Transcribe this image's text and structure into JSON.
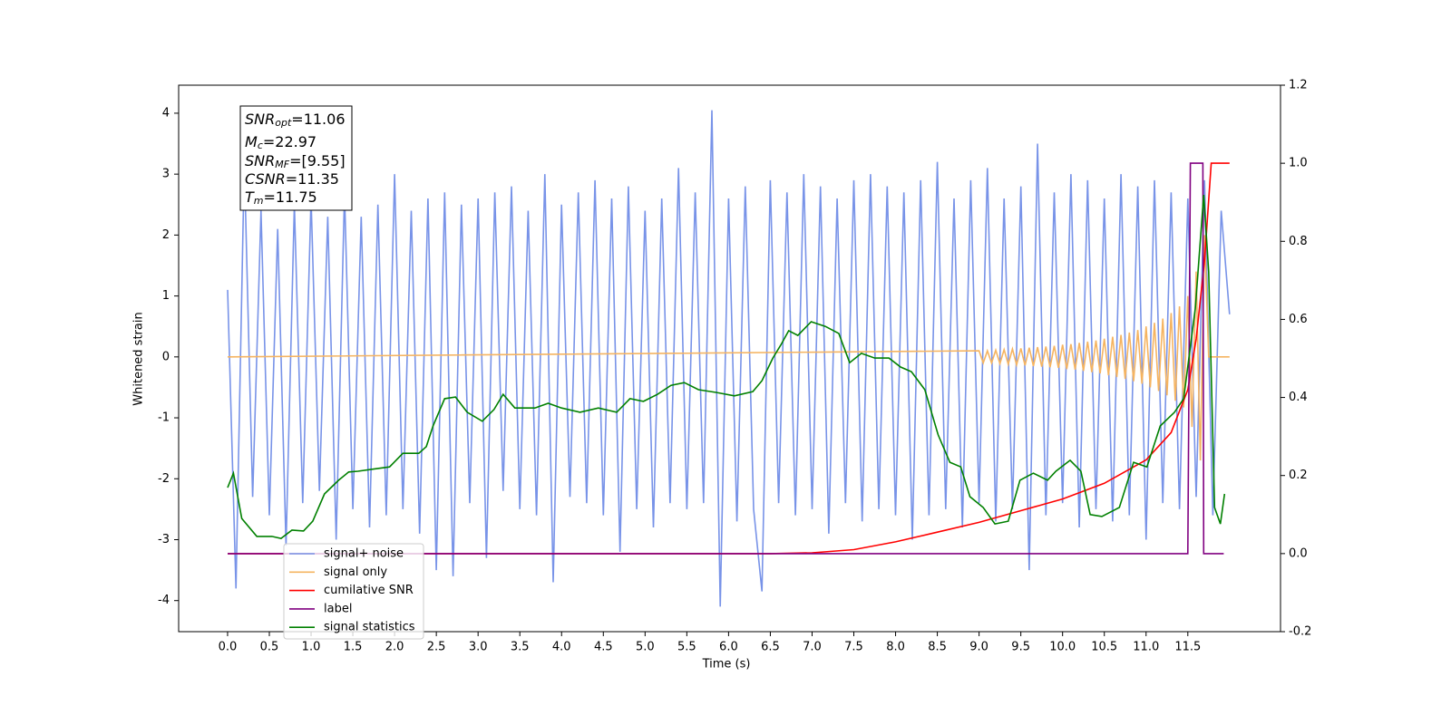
{
  "chart_data": {
    "type": "line",
    "xlabel": "Time (s)",
    "ylabel": "Whitened strain",
    "xlim": [
      -0.586,
      12.61
    ],
    "ylim": [
      -4.51,
      4.46
    ],
    "y2lim": [
      -0.2,
      1.2
    ],
    "xticks": [
      {
        "value": 0,
        "label": "0.0"
      },
      0.5,
      {
        "value": 1,
        "label": "1.0"
      },
      1.5,
      {
        "value": 2,
        "label": "2.0"
      },
      2.5,
      {
        "value": 3,
        "label": "3.0"
      },
      3.5,
      {
        "value": 4,
        "label": "4.0"
      },
      4.5,
      {
        "value": 5,
        "label": "5.0"
      },
      5.5,
      {
        "value": 6,
        "label": "6.0"
      },
      6.5,
      {
        "value": 7,
        "label": "7.0"
      },
      7.5,
      {
        "value": 8,
        "label": "8.0"
      },
      8.5,
      {
        "value": 9,
        "label": "9.0"
      },
      9.5,
      {
        "value": 10,
        "label": "10.0"
      },
      10.5,
      {
        "value": 11,
        "label": "11.0"
      },
      11.5
    ],
    "yticks": [
      -4,
      -3,
      -2,
      -1,
      0,
      1,
      2,
      3,
      4
    ],
    "y2ticks": [
      -0.2,
      {
        "value": 0,
        "label": "0.0"
      },
      0.2,
      0.4,
      0.6,
      0.8,
      {
        "value": 1,
        "label": "1.0"
      },
      1.2
    ],
    "grid": false,
    "legend": "lower left",
    "annotation": [
      {
        "main": "SNR",
        "sub": "opt",
        "value": "=11.06"
      },
      {
        "main": "M",
        "sub": "c",
        "value": "=22.97"
      },
      {
        "main": "SNR",
        "sub": "MF",
        "value": "=[9.55]"
      },
      {
        "main": "CSNR",
        "sub": "",
        "value": "=11.35"
      },
      {
        "main": "T",
        "sub": "m",
        "value": "=11.75"
      }
    ],
    "series": [
      {
        "name": "signal+ noise",
        "color": "#7893e8",
        "axis": "y",
        "x": [
          0,
          0.1,
          0.2,
          0.3,
          0.4,
          0.5,
          0.6,
          0.7,
          0.8,
          0.9,
          1,
          1.1,
          1.2,
          1.3,
          1.4,
          1.5,
          1.6,
          1.7,
          1.8,
          1.9,
          2,
          2.1,
          2.2,
          2.3,
          2.4,
          2.5,
          2.6,
          2.7,
          2.8,
          2.9,
          3,
          3.1,
          3.2,
          3.3,
          3.4,
          3.5,
          3.6,
          3.7,
          3.8,
          3.9,
          4,
          4.1,
          4.2,
          4.3,
          4.4,
          4.5,
          4.6,
          4.7,
          4.8,
          4.9,
          5,
          5.1,
          5.2,
          5.3,
          5.4,
          5.5,
          5.6,
          5.7,
          5.8,
          5.9,
          6,
          6.1,
          6.2,
          6.3,
          6.4,
          6.5,
          6.6,
          6.7,
          6.8,
          6.9,
          7,
          7.1,
          7.2,
          7.3,
          7.4,
          7.5,
          7.6,
          7.7,
          7.8,
          7.9,
          8,
          8.1,
          8.2,
          8.3,
          8.4,
          8.5,
          8.6,
          8.7,
          8.8,
          8.9,
          9,
          9.1,
          9.2,
          9.3,
          9.4,
          9.5,
          9.6,
          9.7,
          9.8,
          9.9,
          10,
          10.1,
          10.2,
          10.3,
          10.4,
          10.5,
          10.6,
          10.7,
          10.8,
          10.9,
          11,
          11.1,
          11.2,
          11.3,
          11.4,
          11.5,
          11.6,
          11.7,
          11.8,
          11.9,
          12
        ],
        "values": [
          1.1,
          -3.8,
          3.2,
          -2.3,
          2.4,
          -2.6,
          2.1,
          -3.1,
          2.5,
          -2.4,
          2.6,
          -2.2,
          2.3,
          -3.0,
          2.7,
          -2.5,
          2.3,
          -2.8,
          2.5,
          -2.6,
          3.0,
          -2.5,
          2.4,
          -2.9,
          2.6,
          -3.5,
          2.7,
          -3.6,
          2.5,
          -2.4,
          2.6,
          -3.3,
          2.7,
          -2.2,
          2.8,
          -2.5,
          2.4,
          -2.6,
          3.0,
          -3.7,
          2.5,
          -2.3,
          2.7,
          -2.4,
          2.9,
          -2.6,
          2.6,
          -3.2,
          2.8,
          -2.5,
          2.4,
          -2.8,
          2.6,
          -2.4,
          3.1,
          -2.5,
          2.7,
          -2.4,
          4.05,
          -4.1,
          2.6,
          -2.7,
          2.8,
          -2.5,
          -3.85,
          2.9,
          -2.4,
          2.7,
          -2.6,
          3.0,
          -2.5,
          2.8,
          -2.9,
          2.6,
          -2.4,
          2.9,
          -2.7,
          3.0,
          -2.5,
          2.8,
          -2.6,
          2.7,
          -3.0,
          2.9,
          -2.6,
          3.2,
          -2.5,
          2.6,
          -2.8,
          2.9,
          -2.4,
          3.1,
          -2.7,
          2.6,
          -2.5,
          2.8,
          -3.5,
          3.5,
          -2.6,
          2.7,
          -2.4,
          3.0,
          -2.8,
          2.9,
          -2.5,
          2.6,
          -2.7,
          3.0,
          -2.6,
          2.8,
          -3.0,
          2.9,
          -2.4,
          2.7,
          -2.5,
          2.6,
          -2.3,
          2.9,
          -2.6,
          2.4,
          0.7
        ]
      },
      {
        "name": "signal only",
        "color": "#f5b461",
        "axis": "y",
        "x": [
          0,
          9,
          9.05,
          9.1,
          9.15,
          9.2,
          9.25,
          9.3,
          9.35,
          9.4,
          9.45,
          9.5,
          9.55,
          9.6,
          9.65,
          9.7,
          9.75,
          9.8,
          9.85,
          9.9,
          9.95,
          10,
          10.05,
          10.1,
          10.15,
          10.2,
          10.25,
          10.3,
          10.35,
          10.4,
          10.45,
          10.5,
          10.55,
          10.6,
          10.65,
          10.7,
          10.75,
          10.8,
          10.85,
          10.9,
          10.95,
          11,
          11.05,
          11.1,
          11.15,
          11.2,
          11.25,
          11.3,
          11.35,
          11.4,
          11.45,
          11.5,
          11.55,
          11.6,
          11.65,
          11.7,
          11.75,
          12
        ],
        "values": [
          0,
          0.1,
          -0.1,
          0.1,
          -0.1,
          0.11,
          -0.11,
          0.12,
          -0.12,
          0.13,
          -0.13,
          0.14,
          -0.14,
          0.15,
          -0.15,
          0.16,
          -0.16,
          0.17,
          -0.17,
          0.18,
          -0.18,
          0.2,
          -0.2,
          0.21,
          -0.21,
          0.23,
          -0.23,
          0.25,
          -0.25,
          0.27,
          -0.27,
          0.3,
          -0.3,
          0.33,
          -0.33,
          0.36,
          -0.36,
          0.4,
          -0.4,
          0.44,
          -0.44,
          0.5,
          -0.5,
          0.56,
          -0.56,
          0.63,
          -0.63,
          0.72,
          -0.72,
          0.83,
          -0.83,
          1.0,
          -1.15,
          1.4,
          -1.7,
          2.0,
          0,
          0
        ]
      },
      {
        "name": "cumilative SNR",
        "color": "#ff0000",
        "axis": "y2",
        "x": [
          0,
          6.5,
          7,
          7.5,
          8,
          8.5,
          9,
          9.5,
          10,
          10.5,
          11,
          11.3,
          11.5,
          11.6,
          11.7,
          11.78,
          12
        ],
        "values": [
          0,
          0,
          0.002,
          0.01,
          0.03,
          0.055,
          0.08,
          0.11,
          0.14,
          0.18,
          0.24,
          0.31,
          0.42,
          0.55,
          0.75,
          1.0,
          1.0
        ]
      },
      {
        "name": "label",
        "color": "#800080",
        "axis": "y2",
        "x": [
          0,
          11.5,
          11.53,
          11.68,
          11.69,
          11.93
        ],
        "values": [
          0,
          0,
          1.0,
          1.0,
          0,
          0
        ]
      },
      {
        "name": "signal statistics",
        "color": "#008000",
        "axis": "y2",
        "x": [
          0,
          0.07,
          0.17,
          0.35,
          0.53,
          0.64,
          0.77,
          0.91,
          1.02,
          1.16,
          1.33,
          1.45,
          1.56,
          1.73,
          1.94,
          2.1,
          2.29,
          2.38,
          2.46,
          2.6,
          2.73,
          2.87,
          3.05,
          3.19,
          3.3,
          3.44,
          3.68,
          3.84,
          4.0,
          4.22,
          4.44,
          4.66,
          4.82,
          4.98,
          5.15,
          5.31,
          5.47,
          5.64,
          5.85,
          6.07,
          6.29,
          6.4,
          6.53,
          6.63,
          6.72,
          6.83,
          6.99,
          7.16,
          7.32,
          7.45,
          7.59,
          7.75,
          7.92,
          8.06,
          8.19,
          8.35,
          8.51,
          8.65,
          8.78,
          8.89,
          9.05,
          9.19,
          9.35,
          9.49,
          9.65,
          9.82,
          9.92,
          10.09,
          10.22,
          10.33,
          10.47,
          10.68,
          10.85,
          11.01,
          11.17,
          11.34,
          11.45,
          11.59,
          11.69,
          11.75,
          11.82,
          11.89,
          11.94
        ],
        "values": [
          0.169,
          0.206,
          0.09,
          0.044,
          0.044,
          0.039,
          0.06,
          0.058,
          0.083,
          0.153,
          0.188,
          0.209,
          0.211,
          0.216,
          0.222,
          0.257,
          0.257,
          0.274,
          0.327,
          0.397,
          0.401,
          0.362,
          0.339,
          0.369,
          0.408,
          0.373,
          0.373,
          0.385,
          0.373,
          0.362,
          0.373,
          0.362,
          0.397,
          0.39,
          0.408,
          0.431,
          0.438,
          0.42,
          0.413,
          0.404,
          0.415,
          0.443,
          0.501,
          0.536,
          0.571,
          0.559,
          0.594,
          0.582,
          0.564,
          0.489,
          0.513,
          0.501,
          0.501,
          0.478,
          0.466,
          0.42,
          0.304,
          0.234,
          0.222,
          0.146,
          0.118,
          0.076,
          0.083,
          0.188,
          0.206,
          0.188,
          0.211,
          0.239,
          0.211,
          0.1,
          0.095,
          0.118,
          0.234,
          0.222,
          0.327,
          0.362,
          0.397,
          0.629,
          0.919,
          0.722,
          0.118,
          0.076,
          0.153
        ]
      }
    ]
  }
}
